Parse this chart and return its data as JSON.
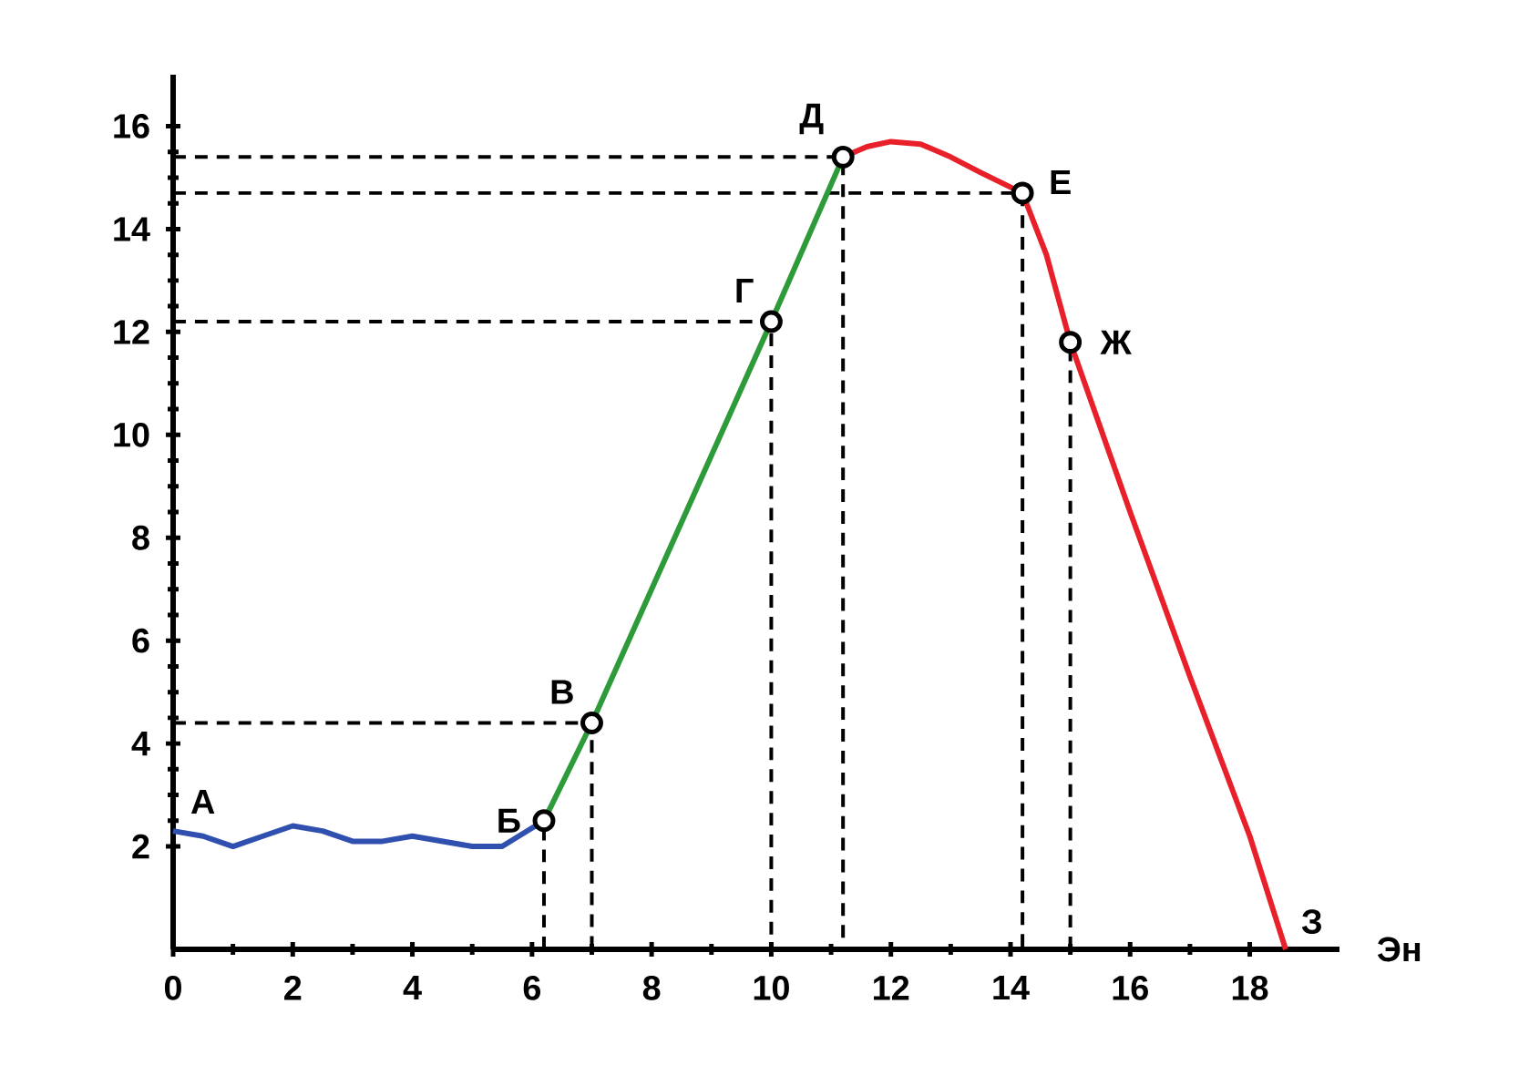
{
  "chart_data": {
    "type": "line",
    "xlabel": "Эн",
    "xlim": [
      0,
      19.5
    ],
    "ylim": [
      0,
      17
    ],
    "xticks": [
      0,
      2,
      4,
      6,
      8,
      10,
      12,
      14,
      16,
      18
    ],
    "yticks": [
      2,
      4,
      6,
      8,
      10,
      12,
      14,
      16
    ],
    "series": [
      {
        "color": "#000000",
        "line_style": "dashed",
        "x": [
          0,
          7,
          7
        ],
        "values": [
          4.4,
          4.4,
          0
        ]
      },
      {
        "color": "#000000",
        "line_style": "dashed",
        "x": [
          6.2,
          6.2
        ],
        "values": [
          0,
          2.5
        ]
      },
      {
        "color": "#000000",
        "line_style": "dashed",
        "x": [
          0,
          10,
          10
        ],
        "values": [
          12.2,
          12.2,
          0
        ]
      },
      {
        "color": "#000000",
        "line_style": "dashed",
        "x": [
          0,
          11.2,
          11.2
        ],
        "values": [
          15.4,
          15.4,
          0
        ]
      },
      {
        "color": "#000000",
        "line_style": "dashed",
        "x": [
          0,
          14.2,
          14.2
        ],
        "values": [
          14.7,
          14.7,
          0
        ]
      },
      {
        "color": "#000000",
        "line_style": "dashed",
        "x": [
          15,
          15
        ],
        "values": [
          0,
          11.8
        ]
      },
      {
        "color": "#3050b0",
        "line_style": "solid",
        "x": [
          0,
          0.5,
          1,
          1.5,
          2,
          2.5,
          3,
          3.5,
          4,
          4.5,
          5,
          5.5,
          6.2
        ],
        "values": [
          2.3,
          2.2,
          2.0,
          2.2,
          2.4,
          2.3,
          2.1,
          2.1,
          2.2,
          2.1,
          2.0,
          2.0,
          2.5
        ]
      },
      {
        "color": "#2e9b3a",
        "line_style": "solid",
        "x": [
          6.2,
          7,
          10,
          11.2
        ],
        "values": [
          2.5,
          4.4,
          12.2,
          15.4
        ]
      },
      {
        "color": "#e8202a",
        "line_style": "solid",
        "x": [
          11.2,
          11.6,
          12,
          12.5,
          13,
          13.5,
          14.2,
          14.6,
          15,
          16,
          17,
          18,
          18.6
        ],
        "values": [
          15.4,
          15.6,
          15.7,
          15.65,
          15.4,
          15.1,
          14.7,
          13.5,
          11.8,
          8.5,
          5.3,
          2.2,
          0
        ]
      },
      {
        "type": "scatter",
        "color": "#000000",
        "marker": "circle",
        "x": [
          6.2,
          7,
          10,
          11.2,
          14.2,
          15
        ],
        "values": [
          2.5,
          4.4,
          12.2,
          15.4,
          14.7,
          11.8
        ]
      }
    ],
    "annotations": [
      {
        "text": "А",
        "x": 0,
        "y": 2.3
      },
      {
        "text": "Б",
        "x": 6.2,
        "y": 2.5
      },
      {
        "text": "В",
        "x": 7,
        "y": 4.4
      },
      {
        "text": "Г",
        "x": 10,
        "y": 12.2
      },
      {
        "text": "Д",
        "x": 11.2,
        "y": 15.4
      },
      {
        "text": "Е",
        "x": 14.2,
        "y": 14.7
      },
      {
        "text": "Ж",
        "x": 15,
        "y": 11.8
      },
      {
        "text": "З",
        "x": 18.6,
        "y": 0
      }
    ]
  }
}
